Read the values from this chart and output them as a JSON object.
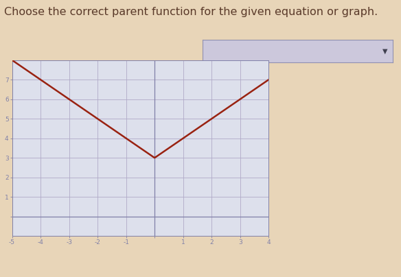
{
  "title": "Choose the correct parent function for the given equation or graph.",
  "title_fontsize": 11.5,
  "title_color": "#5a3a2a",
  "background_color": "#e8d5b8",
  "plot_bg_color": "#dde0ec",
  "grid_color": "#b0aac8",
  "axis_color": "#8080a8",
  "line_color": "#992211",
  "line_width": 1.8,
  "xlim": [
    -5,
    4
  ],
  "ylim": [
    -1,
    8
  ],
  "xticks": [
    -5,
    -4,
    -3,
    -2,
    -1,
    0,
    1,
    2,
    3,
    4
  ],
  "yticks": [
    0,
    1,
    2,
    3,
    4,
    5,
    6,
    7
  ],
  "xtick_labels": [
    "-5",
    "-4",
    "-3",
    "-2",
    "-1",
    "",
    "1",
    "2",
    "3",
    "4"
  ],
  "ytick_labels": [
    "",
    "1",
    "2",
    "3",
    "4",
    "5",
    "6",
    "7"
  ],
  "vertex_x": 0,
  "vertex_y": 3,
  "x_min": -5,
  "x_max": 4,
  "dropdown_bg": "#ccc8dc",
  "dropdown_border": "#9090b0"
}
